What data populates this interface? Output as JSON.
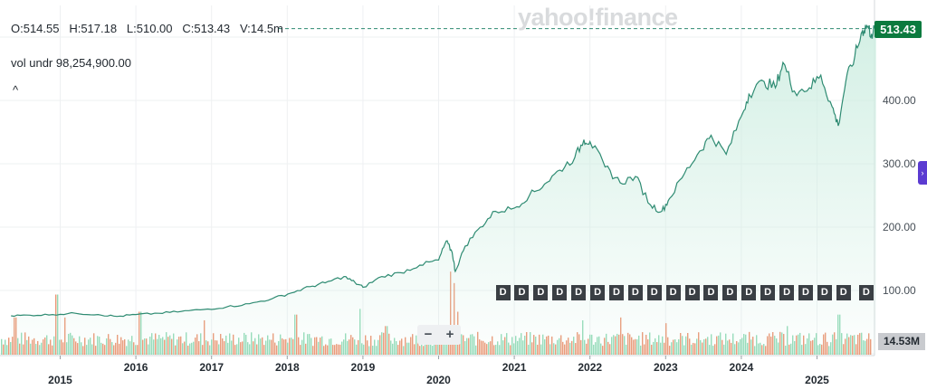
{
  "header": {
    "ohlc": "O:514.55   H:517.18   L:510.00   C:513.43   V:14.5m",
    "volume_label": "vol undr  98,254,900.00",
    "collapse_glyph": "^"
  },
  "watermark": "yahoo!finance",
  "current_price_badge": "513.43",
  "current_volume_badge": "14.53M",
  "zoom": {
    "minus": "−",
    "plus": "+"
  },
  "dividend_marker_label": "D",
  "colors": {
    "price_line": "#2e8b72",
    "area_fill": "#cfeee2",
    "vol_up": "#7fd3aa",
    "vol_down": "#e8825a",
    "badge": "#0b7a3e",
    "grid": "#eef0f2"
  },
  "chart_data": {
    "type": "line",
    "title": "",
    "xlabel": "",
    "ylabel": "",
    "x_ticks": [
      "2015",
      "2016",
      "2017",
      "2018",
      "2019",
      "2020",
      "2021",
      "2022",
      "2023",
      "2024",
      "2025"
    ],
    "y_ticks": [
      "100.00",
      "200.00",
      "300.00",
      "400.00"
    ],
    "ylim": [
      45,
      525
    ],
    "grid": true,
    "series": [
      {
        "values": [
          {
            "x": 2014.35,
            "y": 60
          },
          {
            "x": 2014.6,
            "y": 61
          },
          {
            "x": 2014.9,
            "y": 62
          },
          {
            "x": 2015.2,
            "y": 64
          },
          {
            "x": 2015.5,
            "y": 62
          },
          {
            "x": 2015.75,
            "y": 59
          },
          {
            "x": 2016.0,
            "y": 62
          },
          {
            "x": 2016.3,
            "y": 64
          },
          {
            "x": 2016.6,
            "y": 67
          },
          {
            "x": 2016.9,
            "y": 70
          },
          {
            "x": 2017.2,
            "y": 74
          },
          {
            "x": 2017.5,
            "y": 79
          },
          {
            "x": 2017.8,
            "y": 87
          },
          {
            "x": 2018.05,
            "y": 96
          },
          {
            "x": 2018.3,
            "y": 106
          },
          {
            "x": 2018.5,
            "y": 112
          },
          {
            "x": 2018.75,
            "y": 122
          },
          {
            "x": 2018.9,
            "y": 112
          },
          {
            "x": 2019.0,
            "y": 105
          },
          {
            "x": 2019.25,
            "y": 122
          },
          {
            "x": 2019.5,
            "y": 128
          },
          {
            "x": 2019.75,
            "y": 140
          },
          {
            "x": 2020.0,
            "y": 148
          },
          {
            "x": 2020.1,
            "y": 178
          },
          {
            "x": 2020.18,
            "y": 160
          },
          {
            "x": 2020.22,
            "y": 130
          },
          {
            "x": 2020.35,
            "y": 170
          },
          {
            "x": 2020.55,
            "y": 200
          },
          {
            "x": 2020.75,
            "y": 225
          },
          {
            "x": 2021.0,
            "y": 230
          },
          {
            "x": 2021.2,
            "y": 250
          },
          {
            "x": 2021.4,
            "y": 268
          },
          {
            "x": 2021.6,
            "y": 290
          },
          {
            "x": 2021.8,
            "y": 310
          },
          {
            "x": 2021.92,
            "y": 338
          },
          {
            "x": 2022.0,
            "y": 335
          },
          {
            "x": 2022.2,
            "y": 295
          },
          {
            "x": 2022.4,
            "y": 270
          },
          {
            "x": 2022.6,
            "y": 280
          },
          {
            "x": 2022.8,
            "y": 235
          },
          {
            "x": 2022.95,
            "y": 225
          },
          {
            "x": 2023.05,
            "y": 245
          },
          {
            "x": 2023.25,
            "y": 285
          },
          {
            "x": 2023.45,
            "y": 320
          },
          {
            "x": 2023.6,
            "y": 345
          },
          {
            "x": 2023.8,
            "y": 315
          },
          {
            "x": 2024.0,
            "y": 375
          },
          {
            "x": 2024.1,
            "y": 410
          },
          {
            "x": 2024.3,
            "y": 430
          },
          {
            "x": 2024.45,
            "y": 420
          },
          {
            "x": 2024.55,
            "y": 460
          },
          {
            "x": 2024.7,
            "y": 415
          },
          {
            "x": 2024.9,
            "y": 420
          },
          {
            "x": 2025.05,
            "y": 440
          },
          {
            "x": 2025.2,
            "y": 390
          },
          {
            "x": 2025.28,
            "y": 360
          },
          {
            "x": 2025.38,
            "y": 430
          },
          {
            "x": 2025.5,
            "y": 470
          },
          {
            "x": 2025.6,
            "y": 510
          },
          {
            "x": 2025.66,
            "y": 518
          },
          {
            "x": 2025.72,
            "y": 505
          },
          {
            "x": 2025.78,
            "y": 513.43
          }
        ]
      }
    ],
    "volume": {
      "ylim_millions": [
        0,
        60
      ],
      "spikes": [
        {
          "x": 2014.4,
          "y": 26
        },
        {
          "x": 2014.95,
          "y": 42
        },
        {
          "x": 2015.05,
          "y": 26
        },
        {
          "x": 2016.05,
          "y": 30
        },
        {
          "x": 2016.9,
          "y": 24
        },
        {
          "x": 2018.1,
          "y": 28
        },
        {
          "x": 2018.95,
          "y": 32
        },
        {
          "x": 2019.3,
          "y": 20
        },
        {
          "x": 2020.15,
          "y": 58
        },
        {
          "x": 2020.2,
          "y": 50
        },
        {
          "x": 2020.25,
          "y": 30
        },
        {
          "x": 2021.9,
          "y": 24
        },
        {
          "x": 2022.4,
          "y": 26
        },
        {
          "x": 2023.0,
          "y": 22
        },
        {
          "x": 2024.6,
          "y": 20
        },
        {
          "x": 2025.28,
          "y": 28
        }
      ]
    },
    "dividend_markers": [
      2020.85,
      2021.1,
      2021.35,
      2021.6,
      2021.85,
      2022.1,
      2022.35,
      2022.6,
      2022.85,
      2023.1,
      2023.35,
      2023.6,
      2023.85,
      2024.1,
      2024.35,
      2024.6,
      2024.85,
      2025.1,
      2025.35,
      2025.65
    ]
  }
}
